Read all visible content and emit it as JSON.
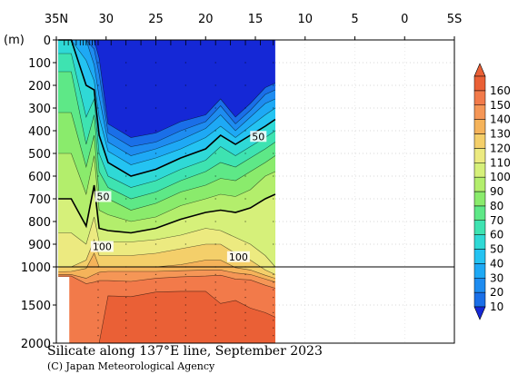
{
  "chart_data": {
    "type": "heatmap",
    "title": "Silicate along 137°E line, September 2023",
    "credit": "(C) Japan Meteorological Agency",
    "y_unit_label": "(m)",
    "x_axis": {
      "ticks": [
        {
          "value": 35,
          "label": "35N"
        },
        {
          "value": 30,
          "label": "30"
        },
        {
          "value": 25,
          "label": "25"
        },
        {
          "value": 20,
          "label": "20"
        },
        {
          "value": 15,
          "label": "15"
        },
        {
          "value": 10,
          "label": "10"
        },
        {
          "value": 5,
          "label": "5"
        },
        {
          "value": 0,
          "label": "0"
        },
        {
          "value": -5,
          "label": "5S"
        }
      ],
      "range": [
        35,
        -5
      ]
    },
    "y_axis": {
      "upper_range": [
        0,
        1000
      ],
      "lower_range": [
        1000,
        2000
      ],
      "ticks_upper": [
        0,
        100,
        200,
        300,
        400,
        500,
        600,
        700,
        800,
        900,
        1000
      ],
      "ticks_lower": [
        1500,
        2000
      ]
    },
    "levels": [
      10,
      20,
      30,
      40,
      50,
      60,
      70,
      80,
      90,
      100,
      110,
      120,
      130,
      140,
      150,
      160
    ],
    "colors": [
      "#1a6fe8",
      "#1e8cf0",
      "#1ea9f5",
      "#24c3f2",
      "#2fd9d6",
      "#3ee3b1",
      "#5ee887",
      "#8aeb6c",
      "#b3ee6c",
      "#d6f07a",
      "#ecea80",
      "#f4cf6a",
      "#f5b35a",
      "#f59656",
      "#f27a4a",
      "#ea6036"
    ],
    "below_color": "#1528d6",
    "contour_labels": [
      {
        "text": "50",
        "lat": 30.3,
        "depth": 690
      },
      {
        "text": "50",
        "lat": 14.7,
        "depth": 425
      },
      {
        "text": "100",
        "lat": 30.4,
        "depth": 910
      },
      {
        "text": "100",
        "lat": 16.7,
        "depth": 955
      }
    ],
    "section": [
      {
        "lat": 34.8,
        "isolines": [
          0,
          0,
          0,
          0,
          0,
          60,
          140,
          320,
          500,
          700,
          850,
          1000,
          1065,
          1100,
          1120,
          2000
        ]
      },
      {
        "lat": 33.5,
        "isolines": [
          0,
          0,
          0,
          0,
          0,
          60,
          140,
          320,
          500,
          700,
          850,
          1000,
          1060,
          1100,
          1120,
          2000
        ]
      },
      {
        "lat": 32.0,
        "isolines": [
          0,
          0,
          0,
          90,
          200,
          340,
          460,
          560,
          680,
          820,
          900,
          970,
          1020,
          1150,
          1220,
          2000
        ]
      },
      {
        "lat": 31.2,
        "isolines": [
          0,
          40,
          110,
          180,
          220,
          260,
          330,
          420,
          510,
          640,
          780,
          880,
          940,
          1100,
          1200,
          2000
        ]
      },
      {
        "lat": 30.7,
        "isolines": [
          80,
          150,
          250,
          340,
          420,
          500,
          580,
          680,
          750,
          830,
          890,
          950,
          1000,
          1070,
          1180,
          2000
        ]
      },
      {
        "lat": 29.8,
        "isolines": [
          370,
          410,
          450,
          490,
          540,
          600,
          650,
          700,
          770,
          840,
          890,
          950,
          1000,
          1060,
          1180,
          1380
        ]
      },
      {
        "lat": 27.5,
        "isolines": [
          430,
          470,
          510,
          550,
          600,
          650,
          700,
          750,
          800,
          850,
          890,
          950,
          1000,
          1060,
          1190,
          1390
        ]
      },
      {
        "lat": 25.0,
        "isolines": [
          410,
          450,
          480,
          520,
          570,
          620,
          670,
          720,
          780,
          830,
          880,
          940,
          1000,
          1060,
          1150,
          1330
        ]
      },
      {
        "lat": 22.5,
        "isolines": [
          360,
          400,
          440,
          480,
          520,
          570,
          620,
          670,
          730,
          790,
          860,
          920,
          990,
          1050,
          1130,
          1320
        ]
      },
      {
        "lat": 20.0,
        "isolines": [
          330,
          360,
          390,
          430,
          480,
          530,
          580,
          640,
          700,
          760,
          830,
          900,
          970,
          1040,
          1120,
          1320
        ]
      },
      {
        "lat": 18.5,
        "isolines": [
          260,
          290,
          330,
          380,
          420,
          470,
          540,
          610,
          680,
          750,
          840,
          900,
          970,
          1040,
          1110,
          1480
        ]
      },
      {
        "lat": 17.0,
        "isolines": [
          340,
          370,
          400,
          430,
          460,
          510,
          560,
          620,
          690,
          760,
          870,
          940,
          1010,
          1080,
          1160,
          1440
        ]
      },
      {
        "lat": 15.5,
        "isolines": [
          280,
          310,
          340,
          380,
          420,
          470,
          520,
          580,
          660,
          740,
          900,
          970,
          1040,
          1100,
          1170,
          1540
        ]
      },
      {
        "lat": 14.0,
        "isolines": [
          210,
          240,
          280,
          330,
          380,
          430,
          480,
          540,
          600,
          700,
          950,
          1040,
          1110,
          1160,
          1240,
          1600
        ]
      },
      {
        "lat": 13.0,
        "isolines": [
          190,
          220,
          260,
          300,
          350,
          400,
          450,
          510,
          580,
          680,
          1000,
          1100,
          1150,
          1200,
          1280,
          1660
        ]
      }
    ],
    "observation_lats": [
      34.2,
      33.8,
      33.4,
      33.0,
      32.6,
      32.3,
      32.0,
      31.7,
      31.4,
      31.1,
      30.8,
      29.5,
      28.0,
      26.5,
      25.0,
      23.5,
      22.0,
      20.5,
      19.0,
      17.5,
      16.0,
      14.5,
      13.2
    ]
  }
}
